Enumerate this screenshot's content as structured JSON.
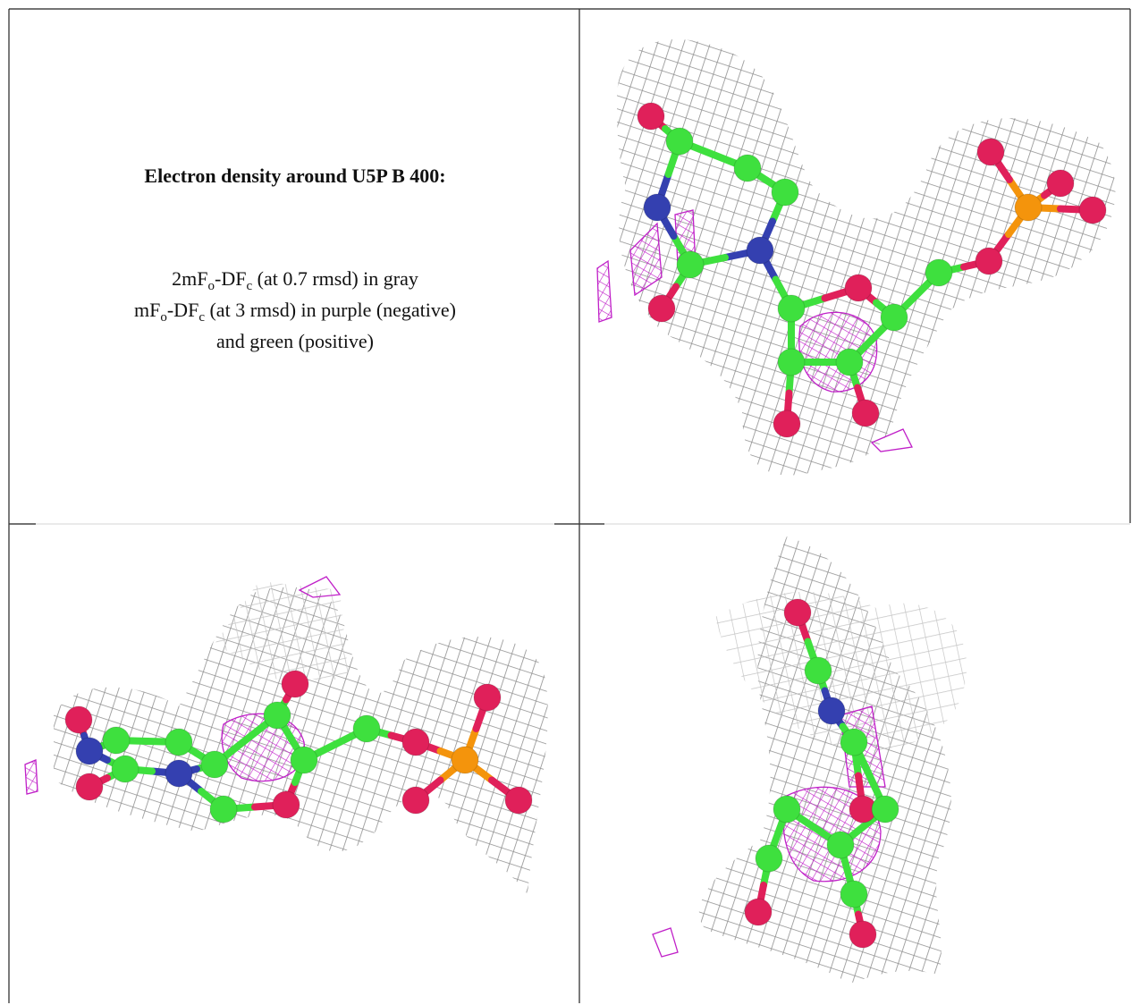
{
  "header": {
    "title": "Electron density around U5P B 400:"
  },
  "caption": {
    "lines": [
      [
        "2mF",
        "o",
        "-DF",
        "c",
        " (at 0.7 rmsd) in gray"
      ],
      [
        "mF",
        "o",
        "-DF",
        "c",
        " (at 3 rmsd) in purple (negative)"
      ],
      [
        "and green (positive)"
      ]
    ]
  }
}
